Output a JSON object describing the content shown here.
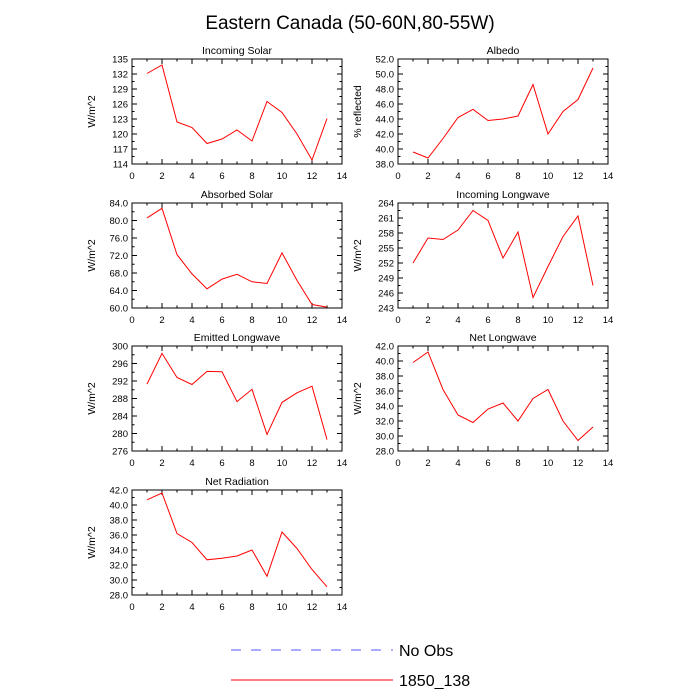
{
  "figure_title": "Eastern Canada (50-60N,80-55W)",
  "legend": {
    "entries": [
      {
        "label": "No Obs",
        "style": "dashed",
        "color": "#5555ff"
      },
      {
        "label": "1850_138",
        "style": "solid",
        "color": "#ff0000"
      }
    ]
  },
  "chart_data": [
    {
      "type": "line",
      "title": "Incoming Solar",
      "ylabel": "W/m^2",
      "xlim": [
        0,
        14
      ],
      "ylim": [
        114,
        135
      ],
      "xticks": [
        0,
        2,
        4,
        6,
        8,
        10,
        12,
        14
      ],
      "yticks": [
        114,
        117,
        120,
        123,
        126,
        129,
        132,
        135
      ],
      "ytick_labels": [
        "114",
        "117",
        "120",
        "123",
        "126",
        "129",
        "132",
        "135"
      ],
      "series": [
        {
          "color": "#ff0000",
          "x": [
            1,
            2,
            3,
            4,
            5,
            6,
            7,
            8,
            9,
            10,
            11,
            12,
            13
          ],
          "y": [
            132.1,
            133.8,
            122.4,
            121.3,
            118.1,
            119.0,
            120.8,
            118.6,
            126.5,
            124.3,
            120.0,
            114.8,
            123.1
          ]
        }
      ]
    },
    {
      "type": "line",
      "title": "Albedo",
      "ylabel": "% reflected",
      "xlim": [
        0,
        14
      ],
      "ylim": [
        38,
        52
      ],
      "xticks": [
        0,
        2,
        4,
        6,
        8,
        10,
        12,
        14
      ],
      "yticks": [
        38,
        40,
        42,
        44,
        46,
        48,
        50,
        52
      ],
      "ytick_labels": [
        "38.0",
        "40.0",
        "42.0",
        "44.0",
        "46.0",
        "48.0",
        "50.0",
        "52.0"
      ],
      "series": [
        {
          "color": "#ff0000",
          "x": [
            1,
            2,
            3,
            4,
            5,
            6,
            7,
            8,
            9,
            10,
            11,
            12,
            13
          ],
          "y": [
            39.6,
            38.8,
            41.4,
            44.2,
            45.3,
            43.8,
            44.0,
            44.4,
            48.6,
            42.0,
            45.0,
            46.6,
            50.8
          ]
        }
      ]
    },
    {
      "type": "line",
      "title": "Absorbed Solar",
      "ylabel": "W/m^2",
      "xlim": [
        0,
        14
      ],
      "ylim": [
        60,
        84
      ],
      "xticks": [
        0,
        2,
        4,
        6,
        8,
        10,
        12,
        14
      ],
      "yticks": [
        60,
        64,
        68,
        72,
        76,
        80,
        84
      ],
      "ytick_labels": [
        "60.0",
        "64.0",
        "68.0",
        "72.0",
        "76.0",
        "80.0",
        "84.0"
      ],
      "series": [
        {
          "color": "#ff0000",
          "x": [
            1,
            2,
            3,
            4,
            5,
            6,
            7,
            8,
            9,
            10,
            11,
            12,
            13
          ],
          "y": [
            80.6,
            82.8,
            72.2,
            67.8,
            64.4,
            66.6,
            67.7,
            66.0,
            65.6,
            72.6,
            66.3,
            60.8,
            60.2
          ]
        }
      ]
    },
    {
      "type": "line",
      "title": "Incoming Longwave",
      "ylabel": "W/m^2",
      "xlim": [
        0,
        14
      ],
      "ylim": [
        243,
        264
      ],
      "xticks": [
        0,
        2,
        4,
        6,
        8,
        10,
        12,
        14
      ],
      "yticks": [
        243,
        246,
        249,
        252,
        255,
        258,
        261,
        264
      ],
      "ytick_labels": [
        "243",
        "246",
        "249",
        "252",
        "255",
        "258",
        "261",
        "264"
      ],
      "series": [
        {
          "color": "#ff0000",
          "x": [
            1,
            2,
            3,
            4,
            5,
            6,
            7,
            8,
            9,
            10,
            11,
            12,
            13
          ],
          "y": [
            252.0,
            257.0,
            256.7,
            258.6,
            262.5,
            260.5,
            253.0,
            258.2,
            245.1,
            251.3,
            257.3,
            261.4,
            247.5
          ]
        }
      ]
    },
    {
      "type": "line",
      "title": "Emitted Longwave",
      "ylabel": "W/m^2",
      "xlim": [
        0,
        14
      ],
      "ylim": [
        276,
        300
      ],
      "xticks": [
        0,
        2,
        4,
        6,
        8,
        10,
        12,
        14
      ],
      "yticks": [
        276,
        280,
        284,
        288,
        292,
        296,
        300
      ],
      "ytick_labels": [
        "276",
        "280",
        "284",
        "288",
        "292",
        "296",
        "300"
      ],
      "series": [
        {
          "color": "#ff0000",
          "x": [
            1,
            2,
            3,
            4,
            5,
            6,
            7,
            8,
            9,
            10,
            11,
            12,
            13
          ],
          "y": [
            291.3,
            298.3,
            292.8,
            291.2,
            294.2,
            294.1,
            287.3,
            290.1,
            279.8,
            287.1,
            289.3,
            290.8,
            278.6
          ]
        }
      ]
    },
    {
      "type": "line",
      "title": "Net Longwave",
      "ylabel": "W/m^2",
      "xlim": [
        0,
        14
      ],
      "ylim": [
        28,
        42
      ],
      "xticks": [
        0,
        2,
        4,
        6,
        8,
        10,
        12,
        14
      ],
      "yticks": [
        28,
        30,
        32,
        34,
        36,
        38,
        40,
        42
      ],
      "ytick_labels": [
        "28.0",
        "30.0",
        "32.0",
        "34.0",
        "36.0",
        "38.0",
        "40.0",
        "42.0"
      ],
      "series": [
        {
          "color": "#ff0000",
          "x": [
            1,
            2,
            3,
            4,
            5,
            6,
            7,
            8,
            9,
            10,
            11,
            12,
            13
          ],
          "y": [
            39.8,
            41.2,
            36.2,
            32.8,
            31.8,
            33.6,
            34.4,
            32.0,
            35.0,
            36.2,
            32.0,
            29.4,
            31.2
          ]
        }
      ]
    },
    {
      "type": "line",
      "title": "Net Radiation",
      "ylabel": "W/m^2",
      "xlim": [
        0,
        14
      ],
      "ylim": [
        28,
        42
      ],
      "xticks": [
        0,
        2,
        4,
        6,
        8,
        10,
        12,
        14
      ],
      "yticks": [
        28,
        30,
        32,
        34,
        36,
        38,
        40,
        42
      ],
      "ytick_labels": [
        "28.0",
        "30.0",
        "32.0",
        "34.0",
        "36.0",
        "38.0",
        "40.0",
        "42.0"
      ],
      "series": [
        {
          "color": "#ff0000",
          "x": [
            1,
            2,
            3,
            4,
            5,
            6,
            7,
            8,
            9,
            10,
            11,
            12,
            13
          ],
          "y": [
            40.7,
            41.6,
            36.2,
            35.0,
            32.7,
            32.9,
            33.2,
            34.0,
            30.5,
            36.4,
            34.2,
            31.4,
            29.1
          ]
        }
      ]
    }
  ]
}
